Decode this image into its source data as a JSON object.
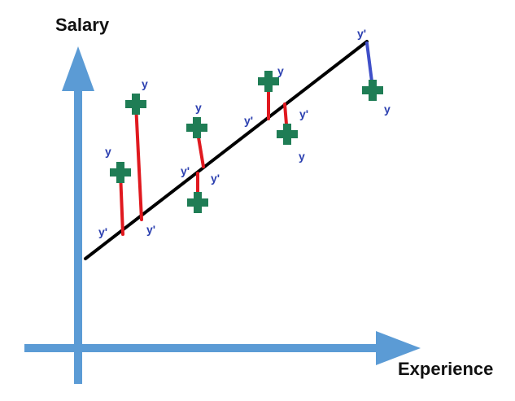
{
  "y_axis_title": "Salary",
  "x_axis_title": "Experience",
  "colors": {
    "axis": "#5b9bd5",
    "regression_line": "#000000",
    "residual_red": "#e0191f",
    "residual_blue": "#3f4fc8",
    "point": "#1f7d55",
    "label": "#2c40b0"
  },
  "icon_names": {
    "data_point": "plus-marker-icon"
  },
  "labels": {
    "actual": "y",
    "predicted": "y'"
  }
}
